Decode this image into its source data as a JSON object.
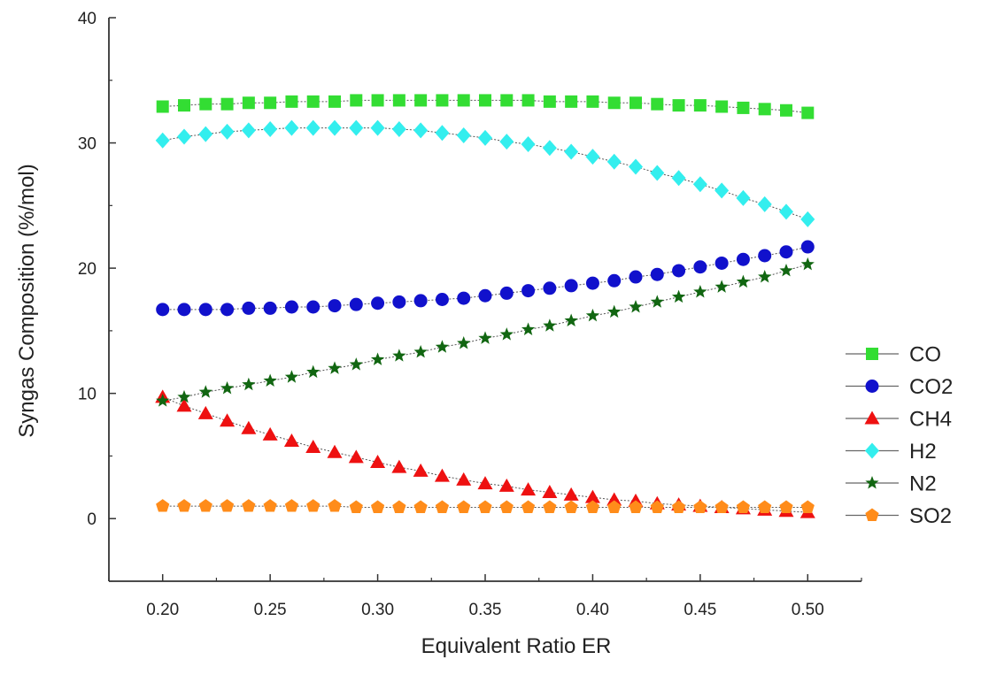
{
  "chart_data": {
    "type": "scatter",
    "title": "",
    "xlabel": "Equivalent Ratio ER",
    "ylabel": "Syngas Composition (%/mol)",
    "xlim": [
      0.175,
      0.525
    ],
    "ylim": [
      -5,
      40
    ],
    "xticks": [
      "0.20",
      "0.25",
      "0.30",
      "0.35",
      "0.40",
      "0.45",
      "0.50"
    ],
    "yticks": [
      "0",
      "10",
      "20",
      "30",
      "40"
    ],
    "grid": false,
    "legend_position": "right",
    "x": [
      0.2,
      0.21,
      0.22,
      0.23,
      0.24,
      0.25,
      0.26,
      0.27,
      0.28,
      0.29,
      0.3,
      0.31,
      0.32,
      0.33,
      0.34,
      0.35,
      0.36,
      0.37,
      0.38,
      0.39,
      0.4,
      0.41,
      0.42,
      0.43,
      0.44,
      0.45,
      0.46,
      0.47,
      0.48,
      0.49,
      0.5
    ],
    "series": [
      {
        "name": "CO",
        "marker": "square",
        "color": "#33dd33",
        "values": [
          32.9,
          33.0,
          33.1,
          33.1,
          33.2,
          33.2,
          33.3,
          33.3,
          33.3,
          33.4,
          33.4,
          33.4,
          33.4,
          33.4,
          33.4,
          33.4,
          33.4,
          33.4,
          33.3,
          33.3,
          33.3,
          33.2,
          33.2,
          33.1,
          33.0,
          33.0,
          32.9,
          32.8,
          32.7,
          32.6,
          32.4
        ]
      },
      {
        "name": "CO2",
        "marker": "circle",
        "color": "#1111cc",
        "values": [
          16.7,
          16.7,
          16.7,
          16.7,
          16.8,
          16.8,
          16.9,
          16.9,
          17.0,
          17.1,
          17.2,
          17.3,
          17.4,
          17.5,
          17.6,
          17.8,
          18.0,
          18.2,
          18.4,
          18.6,
          18.8,
          19.0,
          19.3,
          19.5,
          19.8,
          20.1,
          20.4,
          20.7,
          21.0,
          21.3,
          21.7
        ]
      },
      {
        "name": "CH4",
        "marker": "triangle",
        "color": "#ee1111",
        "values": [
          9.7,
          9.0,
          8.4,
          7.8,
          7.2,
          6.7,
          6.2,
          5.7,
          5.3,
          4.9,
          4.5,
          4.1,
          3.8,
          3.4,
          3.1,
          2.8,
          2.6,
          2.3,
          2.1,
          1.9,
          1.7,
          1.5,
          1.4,
          1.2,
          1.1,
          1.0,
          0.9,
          0.8,
          0.7,
          0.6,
          0.5
        ]
      },
      {
        "name": "H2",
        "marker": "diamond",
        "color": "#33eeee",
        "values": [
          30.2,
          30.5,
          30.7,
          30.9,
          31.0,
          31.1,
          31.2,
          31.2,
          31.2,
          31.2,
          31.2,
          31.1,
          31.0,
          30.8,
          30.6,
          30.4,
          30.1,
          29.9,
          29.6,
          29.3,
          28.9,
          28.5,
          28.1,
          27.6,
          27.2,
          26.7,
          26.2,
          25.6,
          25.1,
          24.5,
          23.9
        ]
      },
      {
        "name": "N2",
        "marker": "star",
        "color": "#116611",
        "values": [
          9.4,
          9.7,
          10.1,
          10.4,
          10.7,
          11.0,
          11.3,
          11.7,
          12.0,
          12.3,
          12.7,
          13.0,
          13.3,
          13.7,
          14.0,
          14.4,
          14.7,
          15.1,
          15.4,
          15.8,
          16.2,
          16.5,
          16.9,
          17.3,
          17.7,
          18.1,
          18.5,
          18.9,
          19.3,
          19.8,
          20.3
        ]
      },
      {
        "name": "SO2",
        "marker": "pentagon",
        "color": "#ff8c1a",
        "values": [
          1.0,
          1.0,
          1.0,
          1.0,
          1.0,
          1.0,
          1.0,
          1.0,
          1.0,
          0.9,
          0.9,
          0.9,
          0.9,
          0.9,
          0.9,
          0.9,
          0.9,
          0.9,
          0.9,
          0.9,
          0.9,
          0.9,
          0.9,
          0.9,
          0.9,
          0.9,
          0.9,
          0.9,
          0.9,
          0.9,
          0.9
        ]
      }
    ]
  }
}
